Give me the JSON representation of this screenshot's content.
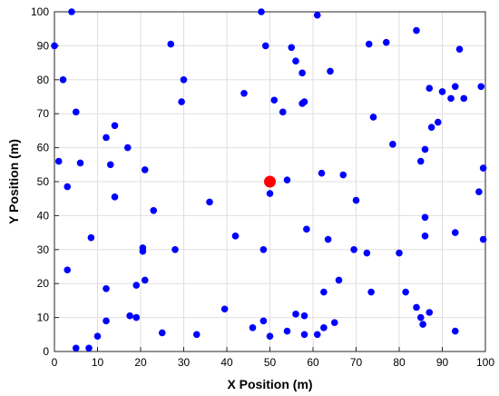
{
  "chart_data": {
    "type": "scatter",
    "title": "",
    "xlabel": "X Position (m)",
    "ylabel": "Y Position (m)",
    "xlim": [
      0,
      100
    ],
    "ylim": [
      0,
      100
    ],
    "xticks": [
      0,
      10,
      20,
      30,
      40,
      50,
      60,
      70,
      80,
      90,
      100
    ],
    "yticks": [
      0,
      10,
      20,
      30,
      40,
      50,
      60,
      70,
      80,
      90,
      100
    ],
    "grid": true,
    "colors": {
      "nodes": "#0000ff",
      "center": "#ff0000"
    },
    "series": [
      {
        "marker": "blue-dot",
        "points": [
          [
            4,
            100
          ],
          [
            48,
            100
          ],
          [
            61,
            99
          ],
          [
            0,
            90
          ],
          [
            27,
            90.5
          ],
          [
            49,
            90
          ],
          [
            55,
            89.5
          ],
          [
            73,
            90.5
          ],
          [
            77,
            91
          ],
          [
            84,
            94.5
          ],
          [
            94,
            89
          ],
          [
            56,
            85.5
          ],
          [
            57.5,
            82
          ],
          [
            64,
            82.5
          ],
          [
            2,
            80
          ],
          [
            30,
            80
          ],
          [
            87,
            77.5
          ],
          [
            90,
            76.5
          ],
          [
            92,
            74.5
          ],
          [
            93,
            78
          ],
          [
            95,
            74.5
          ],
          [
            99,
            78
          ],
          [
            44,
            76
          ],
          [
            51,
            74
          ],
          [
            57.5,
            73
          ],
          [
            58,
            73.5
          ],
          [
            29.5,
            73.5
          ],
          [
            53,
            70.5
          ],
          [
            5,
            70.5
          ],
          [
            74,
            69
          ],
          [
            14,
            66.5
          ],
          [
            12,
            63
          ],
          [
            87.5,
            66
          ],
          [
            89,
            67.5
          ],
          [
            1,
            56
          ],
          [
            6,
            55.5
          ],
          [
            13,
            55
          ],
          [
            17,
            60
          ],
          [
            78.5,
            61
          ],
          [
            86,
            59.5
          ],
          [
            85,
            56
          ],
          [
            3,
            48.5
          ],
          [
            21,
            53.5
          ],
          [
            62,
            52.5
          ],
          [
            67,
            52
          ],
          [
            54,
            50.5
          ],
          [
            50,
            46.5
          ],
          [
            14,
            45.5
          ],
          [
            36,
            44
          ],
          [
            70,
            44.5
          ],
          [
            98.5,
            47
          ],
          [
            99.5,
            54
          ],
          [
            23,
            41.5
          ],
          [
            58.5,
            36
          ],
          [
            86,
            39.5
          ],
          [
            8.5,
            33.5
          ],
          [
            20.5,
            30.5
          ],
          [
            20.5,
            29.5
          ],
          [
            28,
            30
          ],
          [
            42,
            34
          ],
          [
            48.5,
            30
          ],
          [
            63.5,
            33
          ],
          [
            69.5,
            30
          ],
          [
            72.5,
            29
          ],
          [
            80,
            29
          ],
          [
            86,
            34
          ],
          [
            93,
            35
          ],
          [
            99.5,
            33
          ],
          [
            3,
            24
          ],
          [
            21,
            21
          ],
          [
            12,
            18.5
          ],
          [
            19,
            19.5
          ],
          [
            62.5,
            17.5
          ],
          [
            66,
            21
          ],
          [
            73.5,
            17.5
          ],
          [
            81.5,
            17.5
          ],
          [
            12,
            9
          ],
          [
            17.5,
            10.5
          ],
          [
            19,
            10
          ],
          [
            39.5,
            12.5
          ],
          [
            48.5,
            9
          ],
          [
            56,
            11
          ],
          [
            58,
            10.5
          ],
          [
            65,
            8.5
          ],
          [
            84,
            13
          ],
          [
            85,
            10
          ],
          [
            85.5,
            8
          ],
          [
            87,
            11.5
          ],
          [
            5,
            1
          ],
          [
            8,
            1
          ],
          [
            10,
            4.5
          ],
          [
            25,
            5.5
          ],
          [
            33,
            5
          ],
          [
            46,
            7
          ],
          [
            50,
            4.5
          ],
          [
            54,
            6
          ],
          [
            58,
            5
          ],
          [
            61,
            5
          ],
          [
            62.5,
            7
          ],
          [
            93,
            6
          ]
        ]
      },
      {
        "marker": "red-dot-center",
        "points": [
          [
            50,
            50
          ]
        ]
      }
    ]
  }
}
